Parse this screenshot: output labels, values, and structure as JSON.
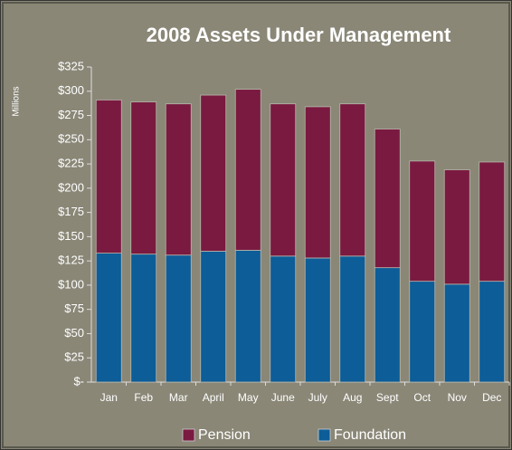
{
  "chart_data": {
    "type": "stacked_bar",
    "title": "2008 Assets Under Management",
    "y_label": "Millions",
    "categories": [
      "Jan",
      "Feb",
      "Mar",
      "April",
      "May",
      "June",
      "July",
      "Aug",
      "Sept",
      "Oct",
      "Nov",
      "Dec"
    ],
    "series": [
      {
        "name": "Foundation",
        "color": "#0c5d98",
        "values": [
          133,
          132,
          131,
          135,
          136,
          130,
          128,
          130,
          118,
          104,
          101,
          104
        ]
      },
      {
        "name": "Pension",
        "color": "#7a1a40",
        "values": [
          158,
          157,
          156,
          161,
          166,
          157,
          156,
          157,
          143,
          124,
          118,
          123
        ]
      }
    ],
    "ylim": [
      0,
      325
    ],
    "yticks": [
      {
        "value": 0,
        "label": "$-"
      },
      {
        "value": 25,
        "label": "$25"
      },
      {
        "value": 50,
        "label": "$50"
      },
      {
        "value": 75,
        "label": "$75"
      },
      {
        "value": 100,
        "label": "$100"
      },
      {
        "value": 125,
        "label": "$125"
      },
      {
        "value": 150,
        "label": "$150"
      },
      {
        "value": 175,
        "label": "$175"
      },
      {
        "value": 200,
        "label": "$200"
      },
      {
        "value": 225,
        "label": "$225"
      },
      {
        "value": 250,
        "label": "$250"
      },
      {
        "value": 275,
        "label": "$275"
      },
      {
        "value": 300,
        "label": "$300"
      },
      {
        "value": 325,
        "label": "$325"
      }
    ],
    "legend_order": [
      "Pension",
      "Foundation"
    ]
  }
}
